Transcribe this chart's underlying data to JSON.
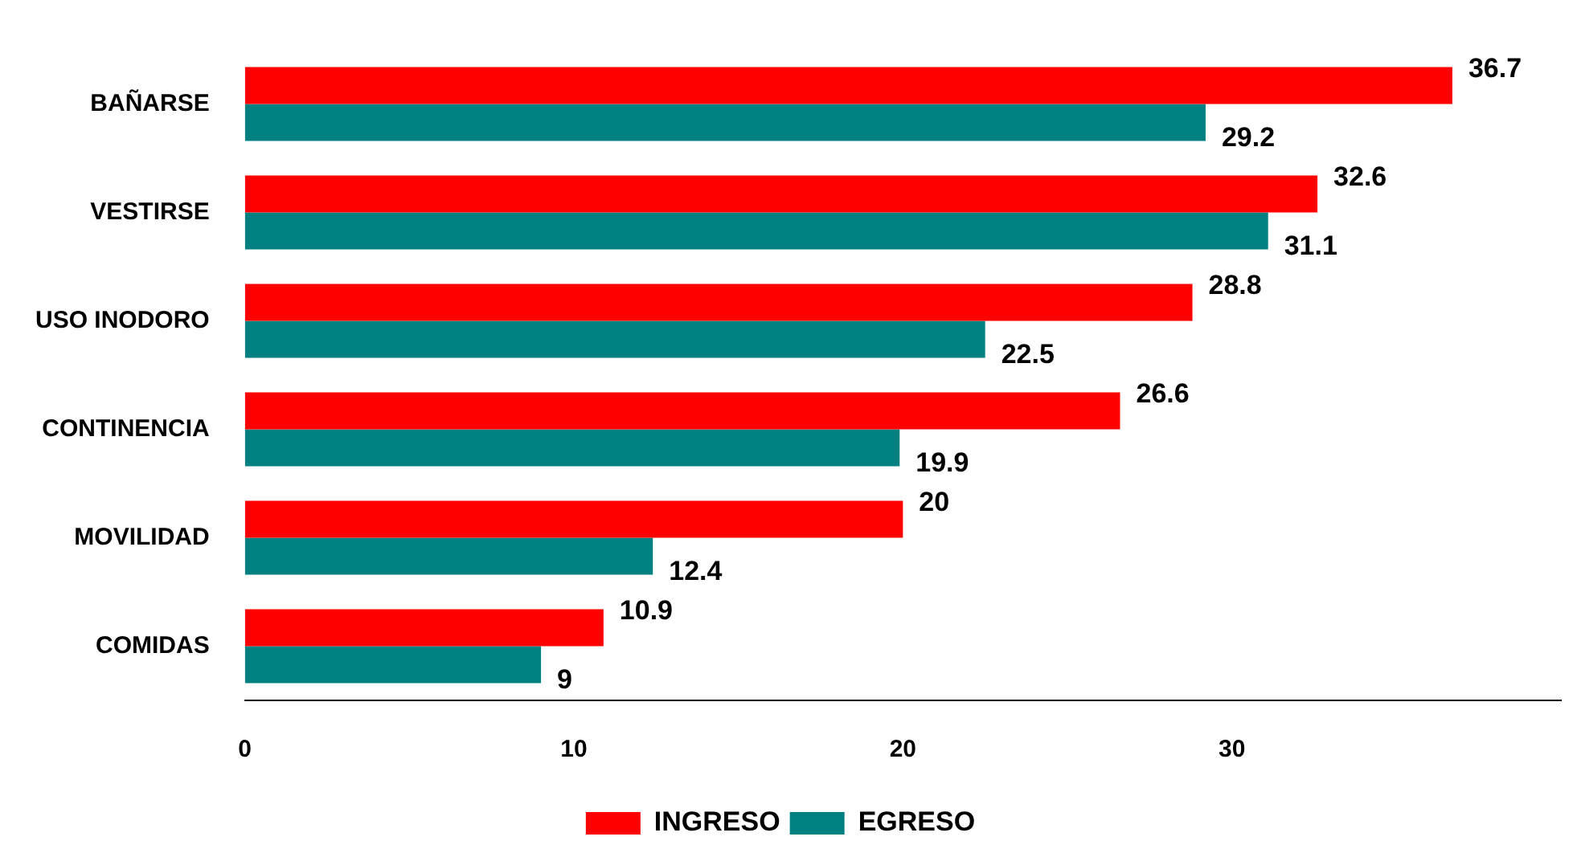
{
  "chart_data": {
    "type": "bar",
    "orientation": "horizontal",
    "categories": [
      "BAÑARSE",
      "VESTIRSE",
      "USO INODORO",
      "CONTINENCIA",
      "MOVILIDAD",
      "COMIDAS"
    ],
    "series": [
      {
        "name": "INGRESO",
        "color": "#ff0000",
        "values": [
          36.7,
          32.6,
          28.8,
          26.6,
          20,
          10.9
        ]
      },
      {
        "name": "EGRESO",
        "color": "#008080",
        "values": [
          29.2,
          31.1,
          22.5,
          19.9,
          12.4,
          9
        ]
      }
    ],
    "xlim": [
      0,
      40
    ],
    "xticks": [
      0,
      10,
      20,
      30
    ],
    "grid": false,
    "legend": "bottom",
    "data_labels": true
  }
}
